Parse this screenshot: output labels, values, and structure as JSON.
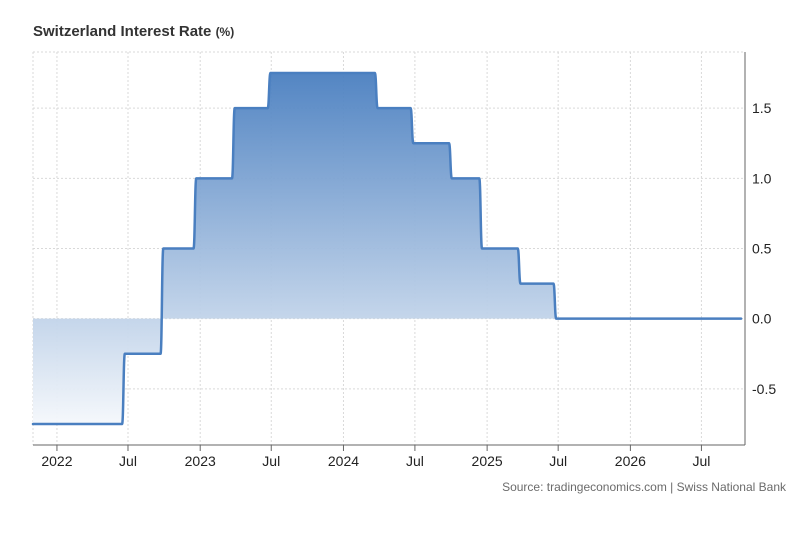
{
  "header": {
    "title": "Switzerland Interest Rate",
    "unit": "(%)"
  },
  "footer": {
    "source": "Source: tradingeconomics.com | Swiss National Bank"
  },
  "colors": {
    "line": "#4a7fc0",
    "fill_top": "#4a7fc0",
    "fill_bottom": "#ffffff",
    "grid": "#d9d9d9"
  },
  "chart_data": {
    "type": "area",
    "title": "Switzerland Interest Rate",
    "unit": "%",
    "xlabel": "",
    "ylabel": "",
    "xlim": [
      "2021-11-01",
      "2026-10-20"
    ],
    "ylim": [
      -0.9,
      1.9
    ],
    "grid": true,
    "y_axis_side": "right",
    "y_ticks": [
      -0.5,
      0.0,
      0.5,
      1.0,
      1.5
    ],
    "y_tick_labels": [
      "-0.5",
      "0.0",
      "0.5",
      "1.0",
      "1.5"
    ],
    "x_ticks": [
      "2022-01-01",
      "2022-07-01",
      "2023-01-01",
      "2023-07-01",
      "2024-01-01",
      "2024-07-01",
      "2025-01-01",
      "2025-07-01",
      "2026-01-01",
      "2026-07-01"
    ],
    "x_tick_labels": [
      "2022",
      "Jul",
      "2023",
      "Jul",
      "2024",
      "Jul",
      "2025",
      "Jul",
      "2026",
      "Jul"
    ],
    "series": [
      {
        "values": [
          [
            "2021-11-01",
            -0.75
          ],
          [
            "2022-06-16",
            -0.75
          ],
          [
            "2022-06-23",
            -0.25
          ],
          [
            "2022-09-22",
            -0.25
          ],
          [
            "2022-09-29",
            0.5
          ],
          [
            "2022-12-15",
            0.5
          ],
          [
            "2022-12-22",
            1.0
          ],
          [
            "2023-03-23",
            1.0
          ],
          [
            "2023-03-30",
            1.5
          ],
          [
            "2023-06-22",
            1.5
          ],
          [
            "2023-06-29",
            1.75
          ],
          [
            "2024-03-21",
            1.75
          ],
          [
            "2024-03-28",
            1.5
          ],
          [
            "2024-06-20",
            1.5
          ],
          [
            "2024-06-27",
            1.25
          ],
          [
            "2024-09-26",
            1.25
          ],
          [
            "2024-10-03",
            1.0
          ],
          [
            "2024-12-12",
            1.0
          ],
          [
            "2024-12-19",
            0.5
          ],
          [
            "2025-03-20",
            0.5
          ],
          [
            "2025-03-27",
            0.25
          ],
          [
            "2025-06-19",
            0.25
          ],
          [
            "2025-06-26",
            0.0
          ],
          [
            "2026-10-10",
            0.0
          ]
        ]
      }
    ]
  }
}
